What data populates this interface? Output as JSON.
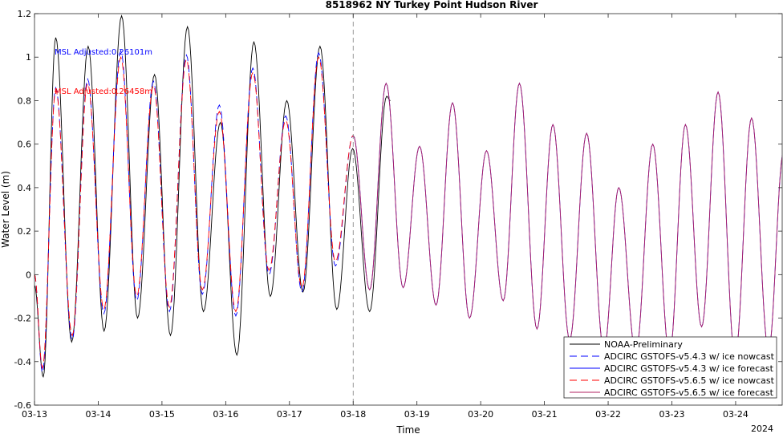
{
  "chart_data": {
    "type": "line",
    "title": "8518962 NY Turkey Point Hudson River",
    "xlabel": "Time",
    "ylabel": "Water Level (m)",
    "year_label": "2024",
    "xlim": [
      "2024-03-13 00:00",
      "2024-03-24 18:00"
    ],
    "ylim": [
      -0.6,
      1.2
    ],
    "xticks": [
      "03-13",
      "03-14",
      "03-15",
      "03-16",
      "03-17",
      "03-18",
      "03-19",
      "03-20",
      "03-21",
      "03-22",
      "03-23",
      "03-24"
    ],
    "yticks": [
      "-0.6",
      "-0.4",
      "-0.2",
      "0",
      "0.2",
      "0.4",
      "0.6",
      "0.8",
      "1",
      "1.2"
    ],
    "forecast_start": "2024-03-18 00:00",
    "annotations": [
      {
        "text": "MSL Adjusted:0.26101m",
        "color": "#0000ff"
      },
      {
        "text": "MSL Adjusted:0.26458m",
        "color": "#ff0000"
      }
    ],
    "legend_position": "bottom-right",
    "grid": false,
    "series": [
      {
        "name": "NOAA-Preliminary",
        "color": "#000000",
        "style": "solid",
        "extrema": [
          [
            "2024-03-13 00:00",
            -0.05
          ],
          [
            "2024-03-13 03:18",
            -0.47
          ],
          [
            "2024-03-13 08:00",
            1.09
          ],
          [
            "2024-03-13 14:00",
            -0.31
          ],
          [
            "2024-03-13 20:12",
            1.05
          ],
          [
            "2024-03-14 02:12",
            -0.26
          ],
          [
            "2024-03-14 08:48",
            1.19
          ],
          [
            "2024-03-14 14:48",
            -0.2
          ],
          [
            "2024-03-14 21:12",
            0.92
          ],
          [
            "2024-03-15 03:12",
            -0.28
          ],
          [
            "2024-03-15 09:36",
            1.14
          ],
          [
            "2024-03-15 15:36",
            -0.17
          ],
          [
            "2024-03-15 22:00",
            0.7
          ],
          [
            "2024-03-16 04:12",
            -0.37
          ],
          [
            "2024-03-16 10:36",
            1.07
          ],
          [
            "2024-03-16 16:48",
            -0.1
          ],
          [
            "2024-03-16 23:00",
            0.8
          ],
          [
            "2024-03-17 05:06",
            -0.08
          ],
          [
            "2024-03-17 11:30",
            1.05
          ],
          [
            "2024-03-17 17:48",
            -0.16
          ],
          [
            "2024-03-17 23:48",
            0.58
          ],
          [
            "2024-03-18 06:12",
            -0.17
          ],
          [
            "2024-03-18 12:36",
            0.82
          ],
          [
            "2024-03-18 14:00",
            0.8
          ]
        ]
      },
      {
        "name": "ADCIRC GSTOFS-v5.4.3 w/ ice nowcast",
        "color": "#0000ff",
        "style": "dashed",
        "extrema": [
          [
            "2024-03-13 00:00",
            0.0
          ],
          [
            "2024-03-13 03:00",
            -0.45
          ],
          [
            "2024-03-13 08:00",
            0.86
          ],
          [
            "2024-03-13 14:12",
            -0.3
          ],
          [
            "2024-03-13 20:00",
            0.9
          ],
          [
            "2024-03-14 02:06",
            -0.18
          ],
          [
            "2024-03-14 08:30",
            1.03
          ],
          [
            "2024-03-14 14:30",
            -0.12
          ],
          [
            "2024-03-14 20:48",
            0.89
          ],
          [
            "2024-03-15 02:48",
            -0.17
          ],
          [
            "2024-03-15 09:12",
            1.01
          ],
          [
            "2024-03-15 15:12",
            -0.09
          ],
          [
            "2024-03-15 21:36",
            0.78
          ],
          [
            "2024-03-16 03:48",
            -0.19
          ],
          [
            "2024-03-16 10:12",
            0.95
          ],
          [
            "2024-03-16 16:18",
            0.0
          ],
          [
            "2024-03-16 22:36",
            0.73
          ],
          [
            "2024-03-17 04:42",
            -0.08
          ],
          [
            "2024-03-17 11:00",
            1.02
          ],
          [
            "2024-03-17 17:18",
            0.04
          ],
          [
            "2024-03-18 00:00",
            0.64
          ]
        ]
      },
      {
        "name": "ADCIRC GSTOFS-v5.4.3 w/ ice forecast",
        "color": "#0000ff",
        "style": "solid",
        "extrema": [
          [
            "2024-03-18 00:00",
            0.64
          ],
          [
            "2024-03-18 06:12",
            -0.07
          ],
          [
            "2024-03-18 12:24",
            0.88
          ],
          [
            "2024-03-18 18:48",
            -0.06
          ],
          [
            "2024-03-19 01:00",
            0.59
          ],
          [
            "2024-03-19 07:12",
            -0.14
          ],
          [
            "2024-03-19 13:24",
            0.79
          ],
          [
            "2024-03-19 19:48",
            -0.2
          ],
          [
            "2024-03-20 02:12",
            0.57
          ],
          [
            "2024-03-20 08:30",
            -0.12
          ],
          [
            "2024-03-20 14:36",
            0.88
          ],
          [
            "2024-03-20 21:12",
            -0.25
          ],
          [
            "2024-03-21 03:12",
            0.69
          ],
          [
            "2024-03-21 09:30",
            -0.3
          ],
          [
            "2024-03-21 15:54",
            0.65
          ],
          [
            "2024-03-21 22:24",
            -0.35
          ],
          [
            "2024-03-22 04:00",
            0.4
          ],
          [
            "2024-03-22 10:24",
            -0.36
          ],
          [
            "2024-03-22 16:48",
            0.6
          ],
          [
            "2024-03-22 23:06",
            -0.37
          ],
          [
            "2024-03-23 05:06",
            0.69
          ],
          [
            "2024-03-23 11:12",
            -0.24
          ],
          [
            "2024-03-23 17:24",
            0.84
          ],
          [
            "2024-03-23 23:48",
            -0.38
          ],
          [
            "2024-03-24 06:00",
            0.72
          ],
          [
            "2024-03-24 12:24",
            -0.35
          ],
          [
            "2024-03-24 18:00",
            0.56
          ]
        ]
      },
      {
        "name": "ADCIRC GSTOFS-v5.6.5 w/ ice nowcast",
        "color": "#ff0000",
        "style": "dashed",
        "extrema": [
          [
            "2024-03-13 00:00",
            0.0
          ],
          [
            "2024-03-13 03:00",
            -0.43
          ],
          [
            "2024-03-13 08:00",
            0.85
          ],
          [
            "2024-03-13 14:12",
            -0.28
          ],
          [
            "2024-03-13 20:00",
            0.88
          ],
          [
            "2024-03-14 02:06",
            -0.16
          ],
          [
            "2024-03-14 08:30",
            1.0
          ],
          [
            "2024-03-14 14:30",
            -0.1
          ],
          [
            "2024-03-14 20:48",
            0.87
          ],
          [
            "2024-03-15 02:48",
            -0.15
          ],
          [
            "2024-03-15 09:12",
            0.99
          ],
          [
            "2024-03-15 15:12",
            -0.07
          ],
          [
            "2024-03-15 21:36",
            0.75
          ],
          [
            "2024-03-16 03:48",
            -0.17
          ],
          [
            "2024-03-16 10:12",
            0.93
          ],
          [
            "2024-03-16 16:18",
            0.02
          ],
          [
            "2024-03-16 22:36",
            0.71
          ],
          [
            "2024-03-17 04:42",
            -0.06
          ],
          [
            "2024-03-17 11:00",
            1.0
          ],
          [
            "2024-03-17 17:18",
            0.06
          ],
          [
            "2024-03-18 00:00",
            0.64
          ]
        ]
      },
      {
        "name": "ADCIRC GSTOFS-v5.6.5 w/ ice forecast",
        "color": "#b02060",
        "style": "solid",
        "extrema": [
          [
            "2024-03-18 00:00",
            0.64
          ],
          [
            "2024-03-18 06:12",
            -0.07
          ],
          [
            "2024-03-18 12:24",
            0.88
          ],
          [
            "2024-03-18 18:48",
            -0.06
          ],
          [
            "2024-03-19 01:00",
            0.59
          ],
          [
            "2024-03-19 07:12",
            -0.14
          ],
          [
            "2024-03-19 13:24",
            0.79
          ],
          [
            "2024-03-19 19:48",
            -0.2
          ],
          [
            "2024-03-20 02:12",
            0.57
          ],
          [
            "2024-03-20 08:30",
            -0.12
          ],
          [
            "2024-03-20 14:36",
            0.88
          ],
          [
            "2024-03-20 21:12",
            -0.25
          ],
          [
            "2024-03-21 03:12",
            0.69
          ],
          [
            "2024-03-21 09:30",
            -0.3
          ],
          [
            "2024-03-21 15:54",
            0.65
          ],
          [
            "2024-03-21 22:24",
            -0.35
          ],
          [
            "2024-03-22 04:00",
            0.4
          ],
          [
            "2024-03-22 10:24",
            -0.36
          ],
          [
            "2024-03-22 16:48",
            0.6
          ],
          [
            "2024-03-22 23:06",
            -0.37
          ],
          [
            "2024-03-23 05:06",
            0.69
          ],
          [
            "2024-03-23 11:12",
            -0.24
          ],
          [
            "2024-03-23 17:24",
            0.84
          ],
          [
            "2024-03-23 23:48",
            -0.38
          ],
          [
            "2024-03-24 06:00",
            0.72
          ],
          [
            "2024-03-24 12:24",
            -0.35
          ],
          [
            "2024-03-24 18:00",
            0.56
          ]
        ]
      }
    ]
  }
}
